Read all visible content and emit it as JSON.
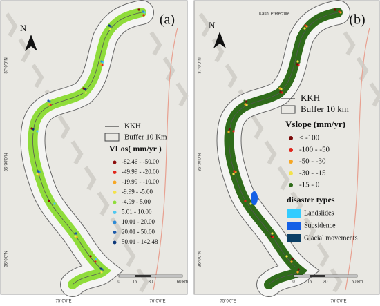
{
  "panels": [
    {
      "label": "(a)",
      "north": "N",
      "lat_labels": [
        "37°0'0\"N",
        "36°30'0\"N",
        "36°0'0\"N"
      ],
      "lon_labels": [
        "75°0'0\"E",
        "76°0'0\"E"
      ],
      "scale_labels": [
        "0",
        "15",
        "30",
        "60 km"
      ],
      "legend": {
        "line": "KKH",
        "buffer": "Buffer 10 Km",
        "title": "VLos( mm/yr )",
        "items": [
          {
            "label": "-82.46 - -50.00",
            "color": "#8b0a0a"
          },
          {
            "label": "-49.99 - -20.00",
            "color": "#e0261c"
          },
          {
            "label": "-19.99 - -10.00",
            "color": "#f5a623"
          },
          {
            "label": "-9.99 - -5.00",
            "color": "#f3e24a"
          },
          {
            "label": "-4.99 - 5.00",
            "color": "#8fdc3a"
          },
          {
            "label": "5.01 - 10.00",
            "color": "#4fc8f0"
          },
          {
            "label": "10.01 - 20.00",
            "color": "#2b8ad6"
          },
          {
            "label": "20.01 - 50.00",
            "color": "#1d5aa8"
          },
          {
            "label": "50.01 - 142.48",
            "color": "#0c3778"
          }
        ]
      }
    },
    {
      "label": "(b)",
      "north": "N",
      "place": "Kashi Prefecture",
      "lat_labels": [
        "37°0'0\"N",
        "36°30'0\"N",
        "36°0'0\"N"
      ],
      "lon_labels": [
        "75°0'0\"E",
        "76°0'0\"E"
      ],
      "scale_labels": [
        "0",
        "15",
        "30",
        "60 km"
      ],
      "legend": {
        "line": "KKH",
        "buffer": "Buffer 10 km",
        "title": "Vslope (mm/yr)",
        "items": [
          {
            "label": "< -100",
            "color": "#7a0a0a"
          },
          {
            "label": "-100 - -50",
            "color": "#e0261c"
          },
          {
            "label": "-50 - -30",
            "color": "#f5a623"
          },
          {
            "label": "-30 - -15",
            "color": "#f3e24a"
          },
          {
            "label": "-15 - 0",
            "color": "#2f6b1a"
          }
        ],
        "types_title": "disaster types",
        "types": [
          {
            "label": "Landslides",
            "color": "#33ccff"
          },
          {
            "label": "Subsidence",
            "color": "#1560e6"
          },
          {
            "label": "Glacial movements",
            "color": "#0b3f66"
          }
        ]
      }
    }
  ]
}
